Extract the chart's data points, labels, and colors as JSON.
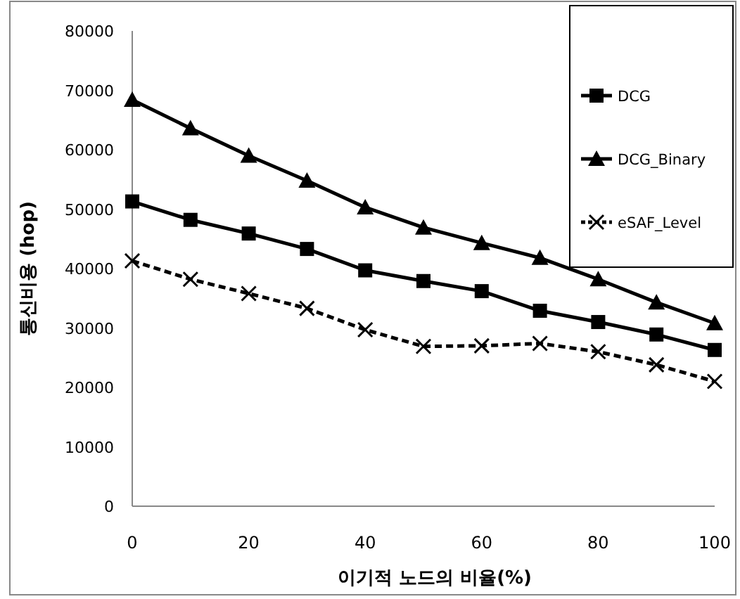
{
  "chart_data": {
    "type": "line",
    "xlabel": "이기적 노드의 비율(%)",
    "ylabel": "통신비용 (hop)",
    "x": [
      0,
      10,
      20,
      30,
      40,
      50,
      60,
      70,
      80,
      90,
      100
    ],
    "xlim": [
      0,
      100
    ],
    "xticks": [
      0,
      20,
      40,
      60,
      80,
      100
    ],
    "ylim": [
      0,
      80000
    ],
    "yticks": [
      0,
      10000,
      20000,
      30000,
      40000,
      50000,
      60000,
      70000,
      80000
    ],
    "grid": false,
    "legend": "top right",
    "series": [
      {
        "name": "DCG",
        "color": "#000000",
        "marker": "square",
        "line_style": "solid",
        "values": [
          51300,
          48200,
          45900,
          43300,
          39700,
          37900,
          36200,
          32900,
          31000,
          28900,
          26300
        ]
      },
      {
        "name": "DCG_Binary",
        "color": "#000000",
        "marker": "triangle",
        "line_style": "solid",
        "values": [
          68400,
          63600,
          59000,
          54800,
          50300,
          46900,
          44300,
          41800,
          38200,
          34300,
          30800
        ]
      },
      {
        "name": "eSAF_Level",
        "color": "#000000",
        "marker": "cross",
        "line_style": "dashed",
        "values": [
          41300,
          38200,
          35800,
          33300,
          29700,
          26900,
          27000,
          27400,
          26000,
          23800,
          21000
        ]
      }
    ]
  }
}
